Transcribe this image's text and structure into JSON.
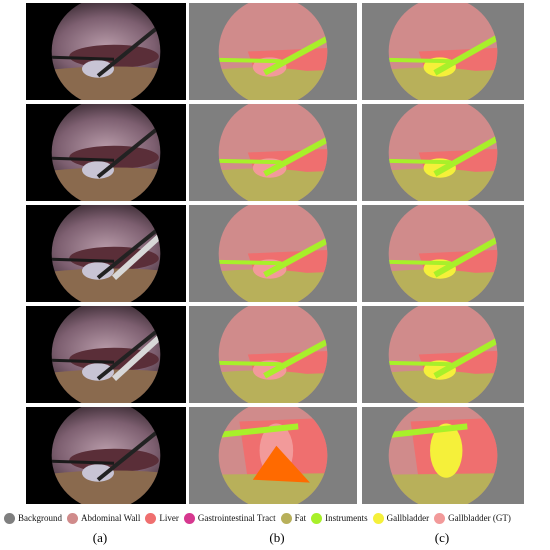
{
  "figure": {
    "rows": 5,
    "panel_labels": [
      "(a)",
      "(b)",
      "(c)"
    ],
    "panel_meaning": {
      "a": "endoscopic photo",
      "b": "predicted segmentation",
      "c": "ground-truth segmentation"
    }
  },
  "legend": [
    {
      "label": "Background",
      "color": "#7f7f7f"
    },
    {
      "label": "Abdominal Wall",
      "color": "#d08b8b"
    },
    {
      "label": "Liver",
      "color": "#ef6f6f"
    },
    {
      "label": "Gastrointestinal Tract",
      "color": "#d6388f"
    },
    {
      "label": "Fat",
      "color": "#b8b05a"
    },
    {
      "label": "Instruments",
      "color": "#a8f02a"
    },
    {
      "label": "Gallbladder",
      "color": "#f5f03a"
    },
    {
      "label": "Gallbladder (GT)",
      "color": "#f29a9a"
    }
  ],
  "colors": {
    "background": "#7f7f7f",
    "abdominal_wall": "#d08b8b",
    "liver": "#ef6f6f",
    "gi_tract": "#d6388f",
    "fat": "#b8b05a",
    "instruments": "#a8f02a",
    "gallbladder": "#f5f03a",
    "gallbladder_gt": "#f29a9a",
    "tissue_orange": "#ff6a00"
  }
}
